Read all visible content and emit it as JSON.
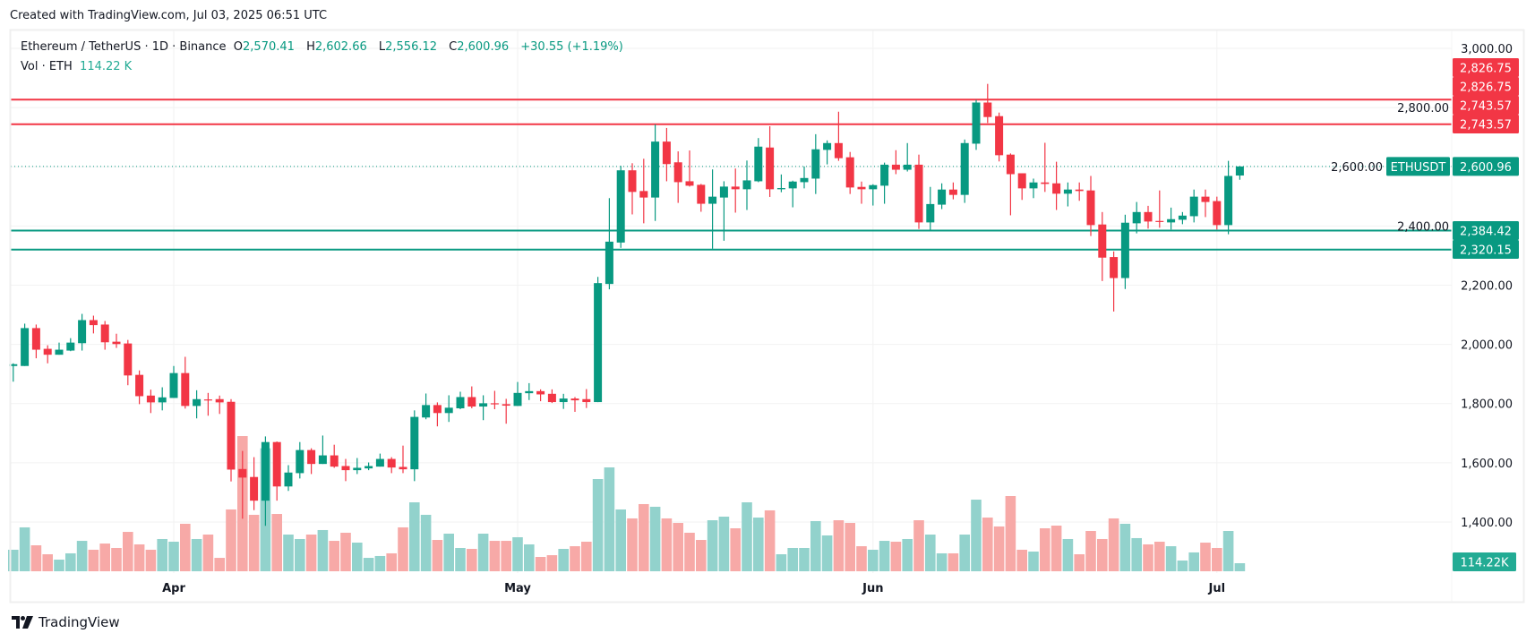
{
  "caption": "Created with TradingView.com, Jul 03, 2025 06:51 UTC",
  "legend": {
    "symbol": "Ethereum / TetherUS · 1D · Binance",
    "o_label": "O",
    "o_value": "2,570.41",
    "h_label": "H",
    "h_value": "2,602.66",
    "l_label": "L",
    "l_value": "2,556.12",
    "c_label": "C",
    "c_value": "2,600.96",
    "change": "+30.55 (+1.19%)",
    "vol_label": "Vol · ETH",
    "vol_value": "114.22 K"
  },
  "logo": {
    "text": "TradingView",
    "icon": "tradingview-logo-icon"
  },
  "colors": {
    "up": "#089981",
    "down": "#F23645",
    "vol_up": "#92d2cc",
    "vol_down": "#f7a9a7",
    "grid": "#f2f2f2"
  },
  "chart_data": {
    "type": "candlestick",
    "symbol": "ETHUSDT",
    "interval": "1D",
    "ylim": [
      1300,
      3050
    ],
    "y_ticks": [
      "3,000.00",
      "2,800.00",
      "2,600.00",
      "2,400.00",
      "2,200.00",
      "2,000.00",
      "1,800.00",
      "1,600.00",
      "1,400.00"
    ],
    "y_tick_values": [
      3000,
      2800,
      2600,
      2400,
      2200,
      2000,
      1800,
      1600,
      1400
    ],
    "x_ticks": [
      {
        "label": "Apr",
        "date": "2025-04-01"
      },
      {
        "label": "May",
        "date": "2025-05-01"
      },
      {
        "label": "Jun",
        "date": "2025-06-01"
      },
      {
        "label": "Jul",
        "date": "2025-07-01"
      }
    ],
    "grid": true,
    "horizontal_lines": [
      {
        "price": 2826.75,
        "label": "2,826.75",
        "color": "#F23645"
      },
      {
        "price": 2743.57,
        "label": "2,743.57",
        "color": "#F23645"
      },
      {
        "price": 2384.42,
        "label": "2,384.42",
        "color": "#089981"
      },
      {
        "price": 2320.15,
        "label": "2,320.15",
        "color": "#089981"
      }
    ],
    "last_price": {
      "symbol": "ETHUSDT",
      "price": 2600.96,
      "label": "2,600.96"
    },
    "last_volume_label": "114.22K",
    "columns": [
      "date",
      "open",
      "high",
      "low",
      "close",
      "volume_k"
    ],
    "candles": [
      [
        "2025-03-18",
        1927,
        1936,
        1874,
        1933,
        305
      ],
      [
        "2025-03-19",
        1927,
        2070,
        1927,
        2055,
        622
      ],
      [
        "2025-03-20",
        2055,
        2067,
        1953,
        1982,
        368
      ],
      [
        "2025-03-21",
        1985,
        1997,
        1936,
        1965,
        241
      ],
      [
        "2025-03-22",
        1965,
        2006,
        1965,
        1982,
        165
      ],
      [
        "2025-03-23",
        1979,
        2021,
        1977,
        2006,
        254
      ],
      [
        "2025-03-24",
        2004,
        2103,
        1979,
        2082,
        431
      ],
      [
        "2025-03-25",
        2082,
        2097,
        2037,
        2065,
        305
      ],
      [
        "2025-03-26",
        2067,
        2079,
        1982,
        2007,
        393
      ],
      [
        "2025-03-27",
        2009,
        2036,
        1988,
        2001,
        330
      ],
      [
        "2025-03-28",
        2003,
        2015,
        1862,
        1895,
        558
      ],
      [
        "2025-03-29",
        1897,
        1912,
        1798,
        1825,
        381
      ],
      [
        "2025-03-30",
        1827,
        1847,
        1768,
        1804,
        305
      ],
      [
        "2025-03-31",
        1804,
        1855,
        1777,
        1821,
        457
      ],
      [
        "2025-04-01",
        1819,
        1927,
        1819,
        1903,
        419
      ],
      [
        "2025-04-02",
        1903,
        1958,
        1783,
        1792,
        673
      ],
      [
        "2025-04-03",
        1792,
        1845,
        1750,
        1815,
        457
      ],
      [
        "2025-04-04",
        1814,
        1836,
        1759,
        1811,
        520
      ],
      [
        "2025-04-05",
        1815,
        1827,
        1765,
        1804,
        190
      ],
      [
        "2025-04-06",
        1806,
        1815,
        1537,
        1577,
        876
      ],
      [
        "2025-04-07",
        1579,
        1640,
        1411,
        1550,
        1916
      ],
      [
        "2025-04-08",
        1552,
        1619,
        1440,
        1472,
        800
      ],
      [
        "2025-04-09",
        1472,
        1689,
        1387,
        1670,
        1743
      ],
      [
        "2025-04-10",
        1670,
        1672,
        1472,
        1520,
        812
      ],
      [
        "2025-04-11",
        1520,
        1592,
        1505,
        1567,
        520
      ],
      [
        "2025-04-12",
        1565,
        1670,
        1547,
        1643,
        457
      ],
      [
        "2025-04-13",
        1643,
        1649,
        1562,
        1596,
        520
      ],
      [
        "2025-04-14",
        1596,
        1692,
        1596,
        1625,
        584
      ],
      [
        "2025-04-15",
        1625,
        1661,
        1583,
        1587,
        431
      ],
      [
        "2025-04-16",
        1589,
        1613,
        1538,
        1575,
        546
      ],
      [
        "2025-04-17",
        1575,
        1616,
        1562,
        1583,
        406
      ],
      [
        "2025-04-18",
        1581,
        1601,
        1575,
        1589,
        190
      ],
      [
        "2025-04-19",
        1587,
        1631,
        1587,
        1613,
        216
      ],
      [
        "2025-04-20",
        1613,
        1619,
        1565,
        1584,
        254
      ],
      [
        "2025-04-21",
        1586,
        1658,
        1565,
        1578,
        622
      ],
      [
        "2025-04-22",
        1578,
        1777,
        1538,
        1755,
        977
      ],
      [
        "2025-04-23",
        1753,
        1834,
        1747,
        1795,
        800
      ],
      [
        "2025-04-24",
        1795,
        1804,
        1723,
        1768,
        444
      ],
      [
        "2025-04-25",
        1768,
        1828,
        1738,
        1786,
        533
      ],
      [
        "2025-04-26",
        1784,
        1840,
        1781,
        1822,
        330
      ],
      [
        "2025-04-27",
        1822,
        1858,
        1784,
        1790,
        317
      ],
      [
        "2025-04-28",
        1790,
        1828,
        1744,
        1801,
        533
      ],
      [
        "2025-04-29",
        1801,
        1843,
        1781,
        1799,
        431
      ],
      [
        "2025-04-30",
        1798,
        1816,
        1732,
        1793,
        431
      ],
      [
        "2025-05-01",
        1792,
        1873,
        1792,
        1836,
        482
      ],
      [
        "2025-05-02",
        1835,
        1869,
        1812,
        1842,
        381
      ],
      [
        "2025-05-03",
        1842,
        1848,
        1808,
        1831,
        203
      ],
      [
        "2025-05-04",
        1833,
        1848,
        1802,
        1805,
        228
      ],
      [
        "2025-05-05",
        1805,
        1833,
        1782,
        1817,
        317
      ],
      [
        "2025-05-06",
        1817,
        1822,
        1772,
        1811,
        355
      ],
      [
        "2025-05-07",
        1815,
        1849,
        1785,
        1805,
        419
      ],
      [
        "2025-05-08",
        1805,
        2228,
        1805,
        2207,
        1307
      ],
      [
        "2025-05-09",
        2204,
        2494,
        2186,
        2347,
        1472
      ],
      [
        "2025-05-10",
        2344,
        2603,
        2326,
        2588,
        876
      ],
      [
        "2025-05-11",
        2588,
        2612,
        2439,
        2515,
        749
      ],
      [
        "2025-05-12",
        2518,
        2627,
        2409,
        2496,
        952
      ],
      [
        "2025-05-13",
        2496,
        2743,
        2417,
        2685,
        914
      ],
      [
        "2025-05-14",
        2685,
        2731,
        2551,
        2609,
        749
      ],
      [
        "2025-05-15",
        2615,
        2652,
        2478,
        2548,
        685
      ],
      [
        "2025-05-16",
        2551,
        2655,
        2533,
        2536,
        546
      ],
      [
        "2025-05-17",
        2539,
        2542,
        2448,
        2475,
        444
      ],
      [
        "2025-05-18",
        2475,
        2591,
        2323,
        2499,
        723
      ],
      [
        "2025-05-19",
        2496,
        2551,
        2350,
        2533,
        774
      ],
      [
        "2025-05-20",
        2533,
        2594,
        2445,
        2524,
        609
      ],
      [
        "2025-05-21",
        2524,
        2621,
        2454,
        2554,
        977
      ],
      [
        "2025-05-22",
        2551,
        2697,
        2548,
        2668,
        761
      ],
      [
        "2025-05-23",
        2665,
        2737,
        2498,
        2524,
        863
      ],
      [
        "2025-05-24",
        2524,
        2574,
        2514,
        2528,
        241
      ],
      [
        "2025-05-25",
        2527,
        2553,
        2463,
        2550,
        330
      ],
      [
        "2025-05-26",
        2548,
        2601,
        2527,
        2562,
        330
      ],
      [
        "2025-05-27",
        2560,
        2710,
        2508,
        2659,
        711
      ],
      [
        "2025-05-28",
        2657,
        2689,
        2608,
        2680,
        508
      ],
      [
        "2025-05-29",
        2680,
        2786,
        2620,
        2629,
        723
      ],
      [
        "2025-05-30",
        2632,
        2650,
        2508,
        2530,
        685
      ],
      [
        "2025-05-31",
        2532,
        2550,
        2475,
        2524,
        355
      ],
      [
        "2025-06-01",
        2524,
        2541,
        2469,
        2538,
        305
      ],
      [
        "2025-06-02",
        2536,
        2614,
        2475,
        2607,
        431
      ],
      [
        "2025-06-03",
        2607,
        2656,
        2575,
        2590,
        419
      ],
      [
        "2025-06-04",
        2590,
        2680,
        2584,
        2607,
        457
      ],
      [
        "2025-06-05",
        2607,
        2641,
        2390,
        2412,
        723
      ],
      [
        "2025-06-06",
        2412,
        2532,
        2387,
        2474,
        520
      ],
      [
        "2025-06-07",
        2472,
        2544,
        2457,
        2523,
        254
      ],
      [
        "2025-06-08",
        2523,
        2547,
        2490,
        2505,
        254
      ],
      [
        "2025-06-09",
        2505,
        2692,
        2478,
        2680,
        520
      ],
      [
        "2025-06-10",
        2678,
        2826,
        2657,
        2817,
        1015
      ],
      [
        "2025-06-11",
        2817,
        2880,
        2748,
        2768,
        761
      ],
      [
        "2025-06-12",
        2771,
        2783,
        2618,
        2639,
        635
      ],
      [
        "2025-06-13",
        2641,
        2645,
        2436,
        2575,
        1066
      ],
      [
        "2025-06-14",
        2578,
        2578,
        2488,
        2527,
        305
      ],
      [
        "2025-06-15",
        2527,
        2560,
        2494,
        2547,
        279
      ],
      [
        "2025-06-16",
        2547,
        2681,
        2515,
        2542,
        609
      ],
      [
        "2025-06-17",
        2544,
        2617,
        2454,
        2509,
        647
      ],
      [
        "2025-06-18",
        2509,
        2547,
        2466,
        2523,
        457
      ],
      [
        "2025-06-19",
        2523,
        2547,
        2485,
        2518,
        241
      ],
      [
        "2025-06-20",
        2520,
        2569,
        2366,
        2403,
        571
      ],
      [
        "2025-06-21",
        2405,
        2447,
        2214,
        2293,
        457
      ],
      [
        "2025-06-22",
        2295,
        2314,
        2111,
        2224,
        749
      ],
      [
        "2025-06-23",
        2224,
        2438,
        2187,
        2411,
        673
      ],
      [
        "2025-06-24",
        2409,
        2481,
        2375,
        2447,
        470
      ],
      [
        "2025-06-25",
        2447,
        2468,
        2391,
        2415,
        381
      ],
      [
        "2025-06-26",
        2417,
        2520,
        2394,
        2415,
        419
      ],
      [
        "2025-06-27",
        2412,
        2462,
        2388,
        2423,
        355
      ],
      [
        "2025-06-28",
        2421,
        2447,
        2406,
        2435,
        152
      ],
      [
        "2025-06-29",
        2433,
        2523,
        2412,
        2499,
        267
      ],
      [
        "2025-06-30",
        2499,
        2523,
        2430,
        2481,
        406
      ],
      [
        "2025-07-01",
        2484,
        2499,
        2388,
        2403,
        330
      ],
      [
        "2025-07-02",
        2403,
        2620,
        2372,
        2569,
        571
      ],
      [
        "2025-07-03",
        2570.41,
        2602.66,
        2556.12,
        2600.96,
        114.22
      ]
    ]
  }
}
